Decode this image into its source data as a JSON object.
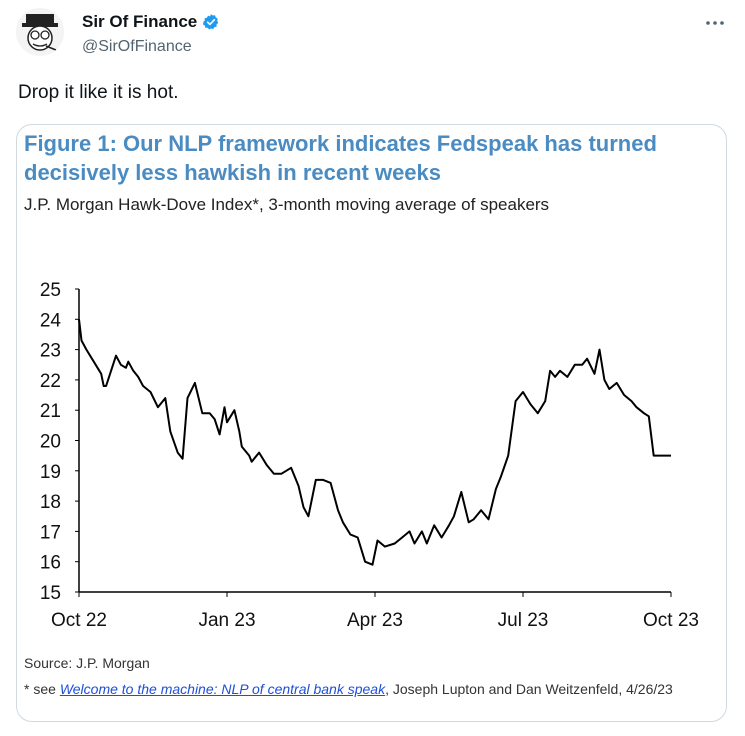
{
  "tweet": {
    "display_name": "Sir Of Finance",
    "handle": "@SirOfFinance",
    "text": "Drop it like it is hot.",
    "more_icon": "more-horizontal-icon",
    "verified_color": "#1d9bf0"
  },
  "figure": {
    "title": "Figure 1: Our NLP framework indicates Fedspeak has turned decisively less hawkish in recent weeks",
    "subtitle": "J.P. Morgan Hawk-Dove Index*, 3-month moving average of speakers",
    "source": "Source: J.P. Morgan",
    "note_prefix": "* see ",
    "note_link": "Welcome to the machine: NLP of central bank speak",
    "note_suffix": ", Joseph Lupton and Dan Weitzenfeld, 4/26/23",
    "title_color": "#4a8bc2"
  },
  "chart_data": {
    "type": "line",
    "title": "",
    "xlabel": "",
    "ylabel": "",
    "ylim": [
      15,
      25
    ],
    "yticks": [
      "15",
      "16",
      "17",
      "18",
      "19",
      "20",
      "21",
      "22",
      "23",
      "24",
      "25"
    ],
    "xticks": [
      "Oct 22",
      "Jan 23",
      "Apr 23",
      "Jul 23",
      "Oct 23"
    ],
    "xlim": [
      0,
      12
    ],
    "grid": false,
    "series": [
      {
        "x": [
          0,
          0.05,
          0.15,
          0.3,
          0.45,
          0.5,
          0.55,
          0.75,
          0.85,
          0.95,
          1.0,
          1.1,
          1.2,
          1.3,
          1.45,
          1.6,
          1.75,
          1.85,
          2.0,
          2.1,
          2.2,
          2.35,
          2.5,
          2.65,
          2.75,
          2.85,
          2.95,
          3.0,
          3.15,
          3.25,
          3.3,
          3.45,
          3.5,
          3.65,
          3.8,
          3.95,
          4.1,
          4.3,
          4.45,
          4.55,
          4.65,
          4.8,
          4.95,
          5.1,
          5.25,
          5.35,
          5.5,
          5.65,
          5.8,
          5.95,
          6.05,
          6.2,
          6.4,
          6.55,
          6.7,
          6.8,
          6.95,
          7.05,
          7.2,
          7.35,
          7.5,
          7.6,
          7.75,
          7.9,
          8.0,
          8.15,
          8.3,
          8.45,
          8.55,
          8.7,
          8.85,
          9.0,
          9.15,
          9.3,
          9.45,
          9.55,
          9.65,
          9.75,
          9.9,
          10.05,
          10.2,
          10.3,
          10.45,
          10.55,
          10.65,
          10.75,
          10.9,
          11.05,
          11.2,
          11.3,
          11.45,
          11.55,
          11.65,
          11.8,
          11.95,
          12.0
        ],
        "y": [
          24,
          23.3,
          23,
          22.6,
          22.2,
          21.8,
          21.8,
          22.8,
          22.5,
          22.4,
          22.6,
          22.3,
          22.1,
          21.8,
          21.6,
          21.1,
          21.4,
          20.3,
          19.6,
          19.4,
          21.4,
          21.9,
          20.9,
          20.9,
          20.7,
          20.2,
          21.1,
          20.6,
          21.0,
          20.3,
          19.8,
          19.5,
          19.3,
          19.6,
          19.2,
          18.9,
          18.9,
          19.1,
          18.5,
          17.8,
          17.5,
          18.7,
          18.7,
          18.6,
          17.7,
          17.3,
          16.9,
          16.8,
          16.0,
          15.9,
          16.7,
          16.5,
          16.6,
          16.8,
          17.0,
          16.6,
          17.0,
          16.6,
          17.2,
          16.8,
          17.2,
          17.5,
          18.3,
          17.3,
          17.4,
          17.7,
          17.4,
          18.4,
          18.8,
          19.5,
          21.3,
          21.6,
          21.2,
          20.9,
          21.3,
          22.3,
          22.1,
          22.3,
          22.1,
          22.5,
          22.5,
          22.7,
          22.2,
          23.0,
          22.0,
          21.7,
          21.9,
          21.5,
          21.3,
          21.1,
          20.9,
          20.8,
          19.5,
          19.5,
          19.5,
          19.5
        ]
      }
    ]
  }
}
